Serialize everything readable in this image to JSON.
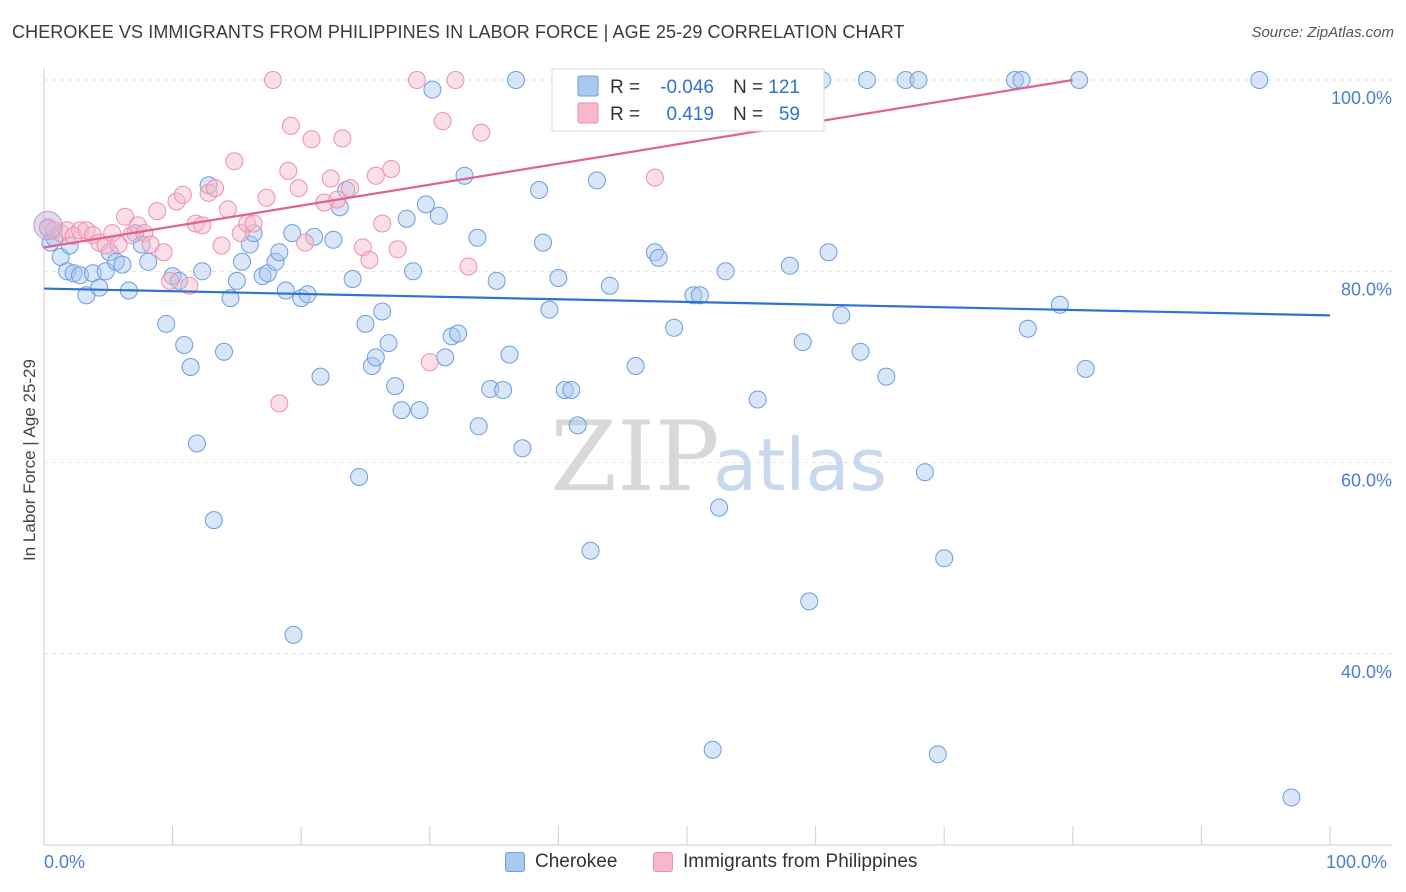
{
  "header": {
    "title": "CHEROKEE VS IMMIGRANTS FROM PHILIPPINES IN LABOR FORCE | AGE 25-29 CORRELATION CHART",
    "source": "Source: ZipAtlas.com"
  },
  "watermark": {
    "zip": "ZIP",
    "atlas": "atlas"
  },
  "colors": {
    "blue_fill": "#a9c8f0",
    "blue_stroke": "#6a9ee0",
    "blue_line": "#2f72d0",
    "pink_fill": "#f7b8cb",
    "pink_stroke": "#ee8fae",
    "pink_line": "#e0628f",
    "axis_label": "#4a7fd0",
    "grid": "#e2e2e2"
  },
  "stats_legend": {
    "rows": [
      {
        "r_label": "R =",
        "r_value": "-0.046",
        "n_label": "N =",
        "n_value": "121",
        "series": "blue"
      },
      {
        "r_label": "R =",
        "r_value": "0.419",
        "n_label": "N =",
        "n_value": "59",
        "series": "pink"
      }
    ]
  },
  "bottom_legend": {
    "items": [
      {
        "label": "Cherokee"
      },
      {
        "label": "Immigrants from Philippines"
      }
    ]
  },
  "chart_data": {
    "type": "scatter",
    "title": "CHEROKEE VS IMMIGRANTS FROM PHILIPPINES IN LABOR FORCE | AGE 25-29 CORRELATION CHART",
    "xlabel": "",
    "ylabel": "In Labor Force | Age 25-29",
    "xlim": [
      0,
      100
    ],
    "ylim": [
      17.5,
      101
    ],
    "x_tick_labels": [
      "0.0%",
      "100.0%"
    ],
    "y_ticks": [
      40,
      60,
      80,
      100
    ],
    "y_tick_labels": [
      "40.0%",
      "60.0%",
      "80.0%",
      "100.0%"
    ],
    "grid": true,
    "series": [
      {
        "name": "Cherokee",
        "color": "#6a9ee0",
        "trend": {
          "x": [
            0,
            100
          ],
          "y": [
            78.2,
            75.4
          ]
        },
        "points": [
          [
            0.3,
            84.5
          ],
          [
            0.5,
            83.0
          ],
          [
            1.3,
            81.5
          ],
          [
            1.8,
            80.0
          ],
          [
            2.3,
            79.8
          ],
          [
            2.8,
            79.6
          ],
          [
            3.3,
            77.5
          ],
          [
            3.8,
            79.8
          ],
          [
            4.3,
            78.3
          ],
          [
            4.8,
            80.0
          ],
          [
            5.1,
            82.0
          ],
          [
            5.6,
            81.0
          ],
          [
            6.1,
            80.7
          ],
          [
            6.6,
            78.0
          ],
          [
            7.1,
            84.0
          ],
          [
            7.6,
            82.8
          ],
          [
            8.1,
            81.0
          ],
          [
            9.5,
            74.5
          ],
          [
            10.0,
            79.5
          ],
          [
            10.5,
            79.0
          ],
          [
            10.9,
            72.3
          ],
          [
            11.4,
            70.0
          ],
          [
            11.9,
            62.0
          ],
          [
            12.3,
            80.0
          ],
          [
            12.8,
            89.0
          ],
          [
            13.2,
            54.0
          ],
          [
            14.0,
            71.6
          ],
          [
            14.5,
            77.2
          ],
          [
            15.0,
            79.0
          ],
          [
            15.4,
            81.0
          ],
          [
            16.0,
            82.8
          ],
          [
            16.3,
            84.0
          ],
          [
            17.0,
            79.5
          ],
          [
            17.4,
            79.8
          ],
          [
            18.0,
            81.0
          ],
          [
            18.3,
            82.0
          ],
          [
            18.8,
            78.0
          ],
          [
            19.3,
            84.0
          ],
          [
            19.4,
            42.0
          ],
          [
            20.0,
            77.2
          ],
          [
            20.5,
            77.6
          ],
          [
            21.0,
            83.6
          ],
          [
            21.5,
            69.0
          ],
          [
            22.5,
            83.3
          ],
          [
            23.0,
            86.7
          ],
          [
            23.5,
            88.5
          ],
          [
            24.0,
            79.2
          ],
          [
            24.5,
            58.5
          ],
          [
            25.0,
            74.5
          ],
          [
            25.5,
            70.1
          ],
          [
            25.8,
            71.0
          ],
          [
            26.3,
            75.8
          ],
          [
            26.8,
            72.5
          ],
          [
            27.3,
            68.0
          ],
          [
            27.8,
            65.5
          ],
          [
            28.2,
            85.5
          ],
          [
            28.7,
            80.0
          ],
          [
            29.2,
            65.5
          ],
          [
            29.7,
            87.0
          ],
          [
            30.2,
            99.0
          ],
          [
            30.7,
            85.8
          ],
          [
            31.2,
            71.0
          ],
          [
            31.7,
            73.2
          ],
          [
            32.2,
            73.5
          ],
          [
            32.7,
            90.0
          ],
          [
            33.7,
            83.5
          ],
          [
            33.8,
            63.8
          ],
          [
            34.7,
            67.7
          ],
          [
            35.2,
            79.0
          ],
          [
            35.7,
            67.6
          ],
          [
            36.2,
            71.3
          ],
          [
            36.7,
            100.0
          ],
          [
            37.2,
            61.5
          ],
          [
            38.5,
            88.5
          ],
          [
            38.8,
            83.0
          ],
          [
            39.3,
            76.0
          ],
          [
            40.0,
            79.3
          ],
          [
            40.5,
            67.6
          ],
          [
            41.0,
            67.6
          ],
          [
            41.5,
            63.9
          ],
          [
            42.5,
            50.8
          ],
          [
            43.0,
            89.5
          ],
          [
            44.0,
            78.5
          ],
          [
            46.0,
            70.1
          ],
          [
            47.5,
            82.0
          ],
          [
            47.8,
            81.4
          ],
          [
            49.0,
            74.1
          ],
          [
            50.5,
            77.5
          ],
          [
            51.0,
            77.5
          ],
          [
            52.0,
            30.0
          ],
          [
            52.5,
            55.3
          ],
          [
            53.0,
            80.0
          ],
          [
            53.5,
            100.0
          ],
          [
            54.5,
            100.0
          ],
          [
            55.0,
            100.0
          ],
          [
            55.5,
            66.6
          ],
          [
            56.5,
            100.0
          ],
          [
            58.0,
            80.6
          ],
          [
            59.0,
            72.6
          ],
          [
            59.5,
            45.5
          ],
          [
            60.5,
            100.0
          ],
          [
            61.0,
            82.0
          ],
          [
            62.0,
            75.4
          ],
          [
            63.5,
            71.6
          ],
          [
            64.0,
            100.0
          ],
          [
            65.5,
            69.0
          ],
          [
            67.0,
            100.0
          ],
          [
            68.0,
            100.0
          ],
          [
            68.5,
            59.0
          ],
          [
            69.5,
            29.5
          ],
          [
            70.0,
            50.0
          ],
          [
            75.5,
            100.0
          ],
          [
            76.0,
            100.0
          ],
          [
            76.5,
            74.0
          ],
          [
            79.0,
            76.5
          ],
          [
            80.5,
            100.0
          ],
          [
            81.0,
            69.8
          ],
          [
            94.5,
            100.0
          ],
          [
            97.0,
            25.0
          ],
          [
            0.8,
            83.5
          ],
          [
            2.0,
            82.7
          ]
        ]
      },
      {
        "name": "Immigrants from Philippines",
        "color": "#ee8fae",
        "trend": {
          "x": [
            0,
            80
          ],
          "y": [
            82.5,
            100.0
          ]
        },
        "points": [
          [
            0.3,
            84.6
          ],
          [
            0.8,
            84.3
          ],
          [
            1.3,
            84.0
          ],
          [
            1.8,
            84.3
          ],
          [
            2.3,
            83.7
          ],
          [
            2.8,
            84.3
          ],
          [
            3.3,
            84.3
          ],
          [
            3.8,
            83.8
          ],
          [
            4.3,
            83.0
          ],
          [
            4.8,
            82.7
          ],
          [
            5.3,
            84.0
          ],
          [
            5.8,
            82.8
          ],
          [
            6.3,
            85.7
          ],
          [
            6.8,
            83.8
          ],
          [
            7.3,
            84.8
          ],
          [
            7.8,
            84.0
          ],
          [
            8.3,
            82.8
          ],
          [
            8.8,
            86.3
          ],
          [
            9.3,
            82.0
          ],
          [
            9.8,
            79.0
          ],
          [
            10.3,
            87.3
          ],
          [
            10.8,
            88.0
          ],
          [
            11.3,
            78.5
          ],
          [
            11.8,
            85.0
          ],
          [
            12.3,
            84.8
          ],
          [
            12.8,
            88.2
          ],
          [
            13.3,
            88.7
          ],
          [
            13.8,
            82.7
          ],
          [
            14.3,
            86.5
          ],
          [
            14.8,
            91.5
          ],
          [
            15.3,
            84.0
          ],
          [
            15.8,
            85.0
          ],
          [
            16.3,
            85.0
          ],
          [
            17.3,
            87.7
          ],
          [
            17.8,
            100.0
          ],
          [
            18.3,
            66.2
          ],
          [
            19.0,
            90.5
          ],
          [
            19.2,
            95.2
          ],
          [
            19.8,
            88.7
          ],
          [
            20.3,
            83.0
          ],
          [
            20.8,
            93.8
          ],
          [
            21.8,
            87.2
          ],
          [
            22.3,
            89.7
          ],
          [
            22.8,
            87.5
          ],
          [
            23.2,
            93.9
          ],
          [
            23.8,
            88.7
          ],
          [
            24.8,
            82.5
          ],
          [
            25.3,
            81.2
          ],
          [
            25.8,
            90.0
          ],
          [
            26.3,
            85.0
          ],
          [
            27.0,
            90.7
          ],
          [
            27.5,
            82.3
          ],
          [
            29.0,
            100.0
          ],
          [
            30.0,
            70.5
          ],
          [
            31.0,
            95.7
          ],
          [
            32.0,
            100.0
          ],
          [
            33.0,
            80.5
          ],
          [
            34.0,
            94.5
          ],
          [
            47.5,
            89.8
          ]
        ]
      }
    ]
  }
}
